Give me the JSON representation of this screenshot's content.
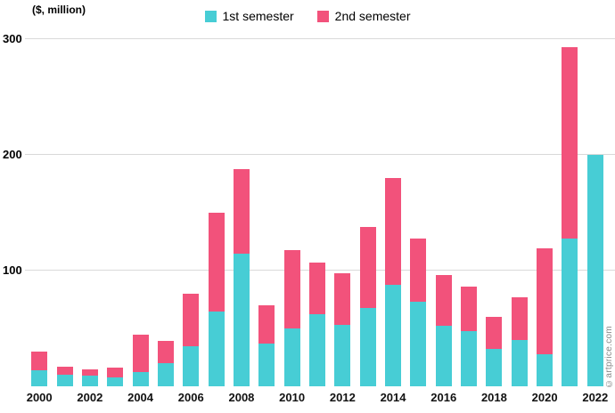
{
  "header": {
    "unit_label": "($, million)"
  },
  "legend": [
    {
      "label": "1st semester",
      "color": "#47cdd5"
    },
    {
      "label": "2nd semester",
      "color": "#f2527b"
    }
  ],
  "watermark": "©artprice.com",
  "chart_data": {
    "type": "bar",
    "stacked": true,
    "title": "",
    "xlabel": "",
    "ylabel": "($, million)",
    "ylim": [
      0,
      300
    ],
    "yticks": [
      100,
      200,
      300
    ],
    "grid": true,
    "legend_position": "top",
    "categories": [
      2000,
      2001,
      2002,
      2003,
      2004,
      2005,
      2006,
      2007,
      2008,
      2009,
      2010,
      2011,
      2012,
      2013,
      2014,
      2015,
      2016,
      2017,
      2018,
      2019,
      2020,
      2021,
      2022
    ],
    "xticks": [
      2000,
      2002,
      2004,
      2006,
      2008,
      2010,
      2012,
      2014,
      2016,
      2018,
      2020,
      2022
    ],
    "series": [
      {
        "name": "1st semester",
        "color": "#47cdd5",
        "values": [
          14,
          10,
          9,
          8,
          12,
          20,
          35,
          65,
          115,
          37,
          50,
          62,
          53,
          68,
          88,
          73,
          52,
          48,
          32,
          40,
          28,
          128,
          200
        ]
      },
      {
        "name": "2nd semester",
        "color": "#f2527b",
        "values": [
          16,
          7,
          6,
          8,
          33,
          19,
          45,
          85,
          73,
          33,
          68,
          45,
          45,
          70,
          92,
          55,
          44,
          38,
          28,
          37,
          91,
          165,
          0
        ]
      }
    ]
  }
}
